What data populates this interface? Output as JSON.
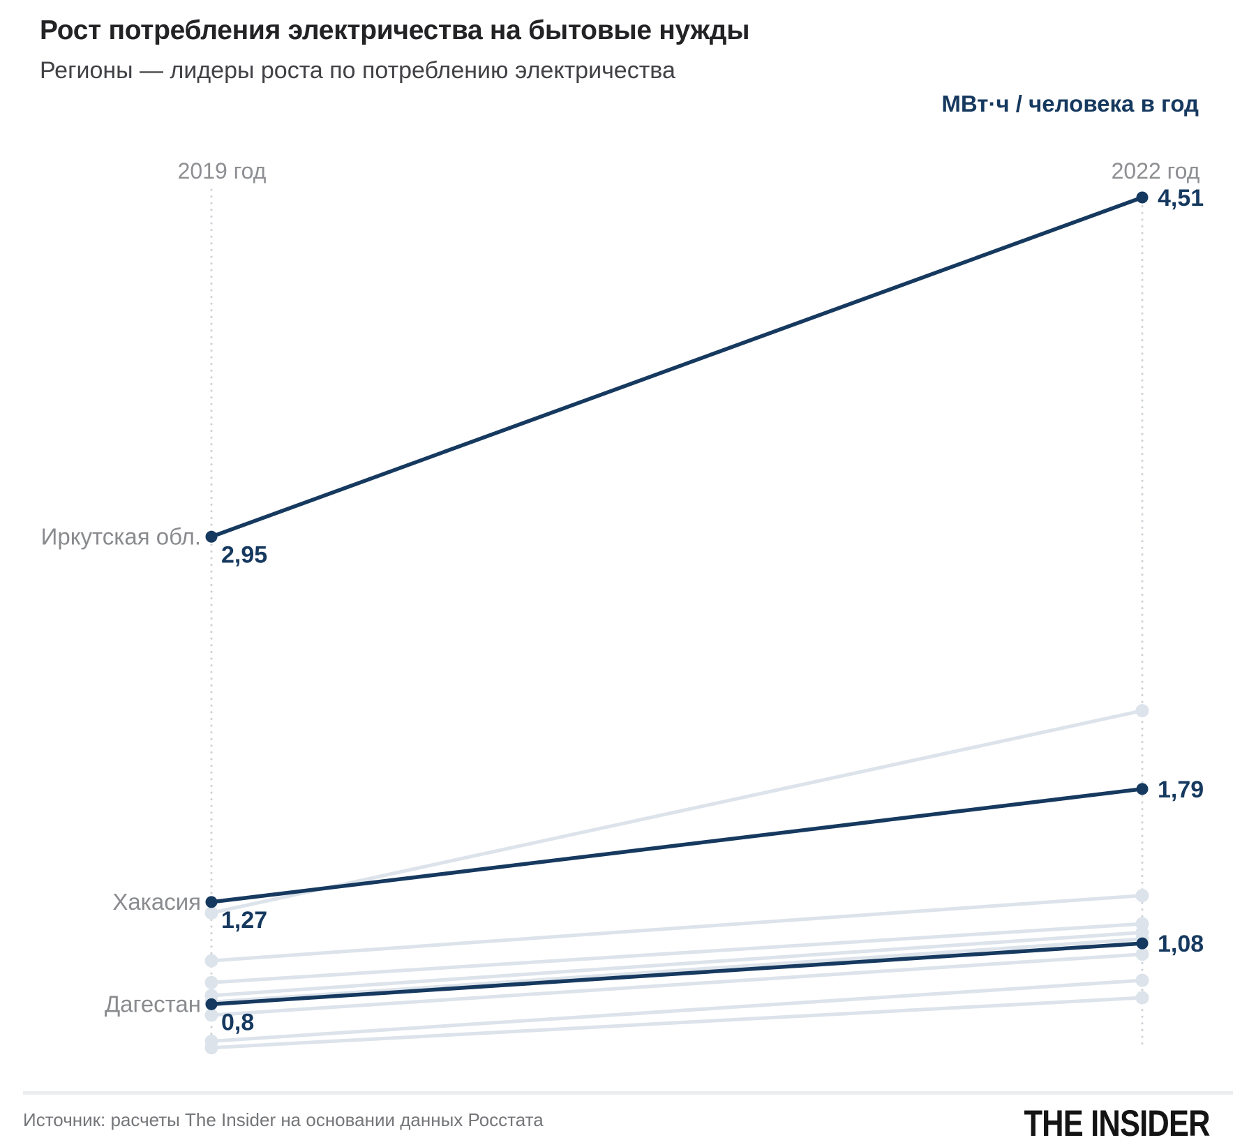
{
  "header": {
    "title": "Рост потребления электричества на бытовые нужды",
    "subtitle": "Регионы — лидеры роста по потреблению электричества",
    "unit_label": "МВт·ч / человека в год"
  },
  "chart_data": {
    "type": "slope",
    "columns": [
      "2019 год",
      "2022 год"
    ],
    "unit": "МВт·ч / человека в год",
    "value_range": [
      0.6,
      4.51
    ],
    "legend_position": "none",
    "grid": "off",
    "colors": {
      "highlight": "#16395f",
      "background_line": "#dce3ea",
      "axis_dotted": "#cbd0d5",
      "column_label": "#8d8f92",
      "region_label": "#898b8e"
    },
    "series": [
      {
        "name": "",
        "values": [
          1.22,
          2.15
        ],
        "highlighted": false
      },
      {
        "name": "",
        "values": [
          1.0,
          1.3
        ],
        "highlighted": false
      },
      {
        "name": "",
        "values": [
          0.9,
          1.17
        ],
        "highlighted": false
      },
      {
        "name": "",
        "values": [
          0.84,
          1.13
        ],
        "highlighted": false
      },
      {
        "name": "",
        "values": [
          0.81,
          1.1
        ],
        "highlighted": false
      },
      {
        "name": "",
        "values": [
          0.75,
          1.03
        ],
        "highlighted": false
      },
      {
        "name": "",
        "values": [
          0.63,
          0.91
        ],
        "highlighted": false
      },
      {
        "name": "",
        "values": [
          0.6,
          0.83
        ],
        "highlighted": false
      },
      {
        "name": "Иркутская обл.",
        "values": [
          2.95,
          4.51
        ],
        "value_labels": [
          "2,95",
          "4,51"
        ],
        "highlighted": true
      },
      {
        "name": "Хакасия",
        "values": [
          1.27,
          1.79
        ],
        "value_labels": [
          "1,27",
          "1,79"
        ],
        "highlighted": true
      },
      {
        "name": "Дагестан",
        "values": [
          0.8,
          1.08
        ],
        "value_labels": [
          "0,8",
          "1,08"
        ],
        "highlighted": true
      }
    ]
  },
  "footer": {
    "source": "Источник: расчеты The Insider на основании данных Росстата",
    "logo": "THE INSIDER"
  }
}
